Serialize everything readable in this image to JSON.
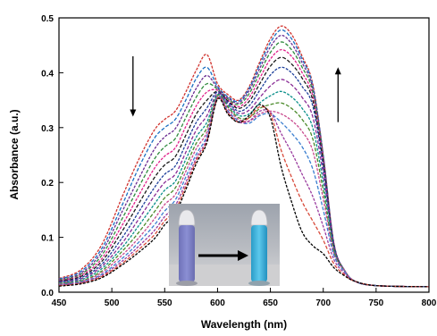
{
  "chart_data": {
    "type": "line",
    "xlabel": "Wavelength (nm)",
    "ylabel": "Absorbance (a.u.)",
    "xlim": [
      450,
      800
    ],
    "ylim": [
      0.0,
      0.5
    ],
    "xticks": [
      "450",
      "500",
      "550",
      "600",
      "650",
      "700",
      "750",
      "800"
    ],
    "yticks": [
      "0.0",
      "0.1",
      "0.2",
      "0.3",
      "0.4",
      "0.5"
    ],
    "grid": false,
    "legend": "none",
    "annotations": [
      {
        "kind": "arrow",
        "direction": "down",
        "near_x": 520,
        "from_y": 0.43,
        "to_y": 0.32
      },
      {
        "kind": "arrow",
        "direction": "up",
        "near_x": 714,
        "from_y": 0.31,
        "to_y": 0.41
      }
    ],
    "inset": {
      "kind": "photo",
      "content": "two vials, violet solution turning blue, black arrow between"
    },
    "series": [
      {
        "color": "#d0322d",
        "x": [
          450,
          470,
          490,
          510,
          525,
          540,
          550,
          560,
          570,
          580,
          590,
          600,
          610,
          620,
          630,
          640,
          650,
          660,
          670,
          680,
          690,
          700,
          710,
          720,
          730,
          750,
          800
        ],
        "y": [
          0.025,
          0.04,
          0.085,
          0.175,
          0.24,
          0.295,
          0.315,
          0.33,
          0.365,
          0.405,
          0.433,
          0.38,
          0.36,
          0.35,
          0.375,
          0.42,
          0.462,
          0.485,
          0.47,
          0.43,
          0.38,
          0.25,
          0.09,
          0.04,
          0.02,
          0.012,
          0.01
        ]
      },
      {
        "color": "#1b6fc2",
        "x": [
          450,
          470,
          490,
          510,
          525,
          540,
          550,
          560,
          570,
          580,
          590,
          600,
          610,
          620,
          630,
          640,
          650,
          660,
          670,
          680,
          690,
          700,
          710,
          720,
          730,
          750,
          800
        ],
        "y": [
          0.024,
          0.037,
          0.078,
          0.16,
          0.225,
          0.28,
          0.3,
          0.315,
          0.35,
          0.39,
          0.41,
          0.375,
          0.356,
          0.348,
          0.372,
          0.415,
          0.455,
          0.478,
          0.462,
          0.425,
          0.377,
          0.25,
          0.09,
          0.04,
          0.02,
          0.012,
          0.01
        ]
      },
      {
        "color": "#6a2c91",
        "x": [
          450,
          470,
          490,
          510,
          525,
          540,
          550,
          560,
          570,
          580,
          590,
          600,
          610,
          620,
          630,
          640,
          650,
          660,
          670,
          680,
          690,
          700,
          710,
          720,
          730,
          750,
          800
        ],
        "y": [
          0.023,
          0.034,
          0.072,
          0.148,
          0.205,
          0.26,
          0.283,
          0.298,
          0.334,
          0.372,
          0.395,
          0.372,
          0.354,
          0.345,
          0.368,
          0.408,
          0.447,
          0.468,
          0.453,
          0.418,
          0.372,
          0.248,
          0.089,
          0.04,
          0.02,
          0.012,
          0.01
        ]
      },
      {
        "color": "#2e8b3d",
        "x": [
          450,
          470,
          490,
          510,
          525,
          540,
          550,
          560,
          570,
          580,
          590,
          600,
          610,
          620,
          630,
          640,
          650,
          660,
          670,
          680,
          690,
          700,
          710,
          720,
          730,
          750,
          800
        ],
        "y": [
          0.022,
          0.032,
          0.066,
          0.135,
          0.19,
          0.242,
          0.265,
          0.28,
          0.318,
          0.356,
          0.38,
          0.37,
          0.352,
          0.342,
          0.362,
          0.4,
          0.437,
          0.456,
          0.442,
          0.41,
          0.366,
          0.245,
          0.088,
          0.04,
          0.02,
          0.012,
          0.01
        ]
      },
      {
        "color": "#e0218a",
        "x": [
          450,
          470,
          490,
          510,
          525,
          540,
          550,
          560,
          570,
          580,
          590,
          600,
          610,
          620,
          630,
          640,
          650,
          660,
          670,
          680,
          690,
          700,
          710,
          720,
          730,
          750,
          800
        ],
        "y": [
          0.021,
          0.03,
          0.06,
          0.123,
          0.175,
          0.225,
          0.248,
          0.263,
          0.302,
          0.34,
          0.365,
          0.368,
          0.35,
          0.338,
          0.355,
          0.39,
          0.425,
          0.442,
          0.43,
          0.4,
          0.358,
          0.24,
          0.087,
          0.04,
          0.02,
          0.012,
          0.01
        ]
      },
      {
        "color": "#1a1a1a",
        "x": [
          450,
          470,
          490,
          510,
          525,
          540,
          550,
          560,
          570,
          580,
          590,
          600,
          610,
          620,
          630,
          640,
          650,
          660,
          670,
          680,
          690,
          700,
          710,
          720,
          730,
          750,
          800
        ],
        "y": [
          0.02,
          0.028,
          0.055,
          0.112,
          0.16,
          0.208,
          0.232,
          0.247,
          0.286,
          0.325,
          0.35,
          0.366,
          0.348,
          0.335,
          0.348,
          0.38,
          0.412,
          0.428,
          0.416,
          0.39,
          0.35,
          0.235,
          0.086,
          0.04,
          0.02,
          0.012,
          0.01
        ]
      },
      {
        "color": "#1d3f9b",
        "x": [
          450,
          470,
          490,
          510,
          525,
          540,
          550,
          560,
          570,
          580,
          590,
          600,
          610,
          620,
          630,
          640,
          650,
          660,
          670,
          680,
          690,
          700,
          710,
          720,
          730,
          750,
          800
        ],
        "y": [
          0.019,
          0.026,
          0.05,
          0.1,
          0.145,
          0.19,
          0.215,
          0.23,
          0.27,
          0.31,
          0.336,
          0.365,
          0.346,
          0.33,
          0.34,
          0.368,
          0.396,
          0.41,
          0.4,
          0.375,
          0.34,
          0.228,
          0.085,
          0.04,
          0.02,
          0.012,
          0.01
        ]
      },
      {
        "color": "#8a2d96",
        "x": [
          450,
          470,
          490,
          510,
          525,
          540,
          550,
          560,
          570,
          580,
          590,
          600,
          610,
          620,
          630,
          640,
          650,
          660,
          670,
          680,
          690,
          700,
          710,
          720,
          730,
          750,
          800
        ],
        "y": [
          0.018,
          0.024,
          0.046,
          0.09,
          0.132,
          0.175,
          0.2,
          0.215,
          0.255,
          0.296,
          0.322,
          0.362,
          0.343,
          0.326,
          0.332,
          0.355,
          0.376,
          0.388,
          0.378,
          0.355,
          0.32,
          0.215,
          0.082,
          0.04,
          0.02,
          0.012,
          0.01
        ]
      },
      {
        "color": "#0a8f8a",
        "x": [
          450,
          470,
          490,
          510,
          525,
          540,
          550,
          560,
          570,
          580,
          590,
          600,
          610,
          620,
          630,
          640,
          650,
          660,
          670,
          680,
          690,
          700,
          710,
          720,
          730,
          750,
          800
        ],
        "y": [
          0.017,
          0.022,
          0.042,
          0.082,
          0.12,
          0.16,
          0.186,
          0.202,
          0.242,
          0.283,
          0.31,
          0.36,
          0.34,
          0.322,
          0.325,
          0.345,
          0.358,
          0.366,
          0.356,
          0.335,
          0.3,
          0.2,
          0.079,
          0.04,
          0.02,
          0.012,
          0.01
        ]
      },
      {
        "color": "#4a8a2a",
        "x": [
          450,
          470,
          490,
          510,
          525,
          540,
          550,
          560,
          570,
          580,
          590,
          600,
          610,
          620,
          630,
          640,
          650,
          660,
          670,
          680,
          690,
          700,
          710,
          720,
          730,
          750,
          800
        ],
        "y": [
          0.016,
          0.02,
          0.038,
          0.075,
          0.108,
          0.146,
          0.172,
          0.19,
          0.23,
          0.272,
          0.3,
          0.358,
          0.337,
          0.318,
          0.318,
          0.335,
          0.342,
          0.345,
          0.335,
          0.315,
          0.28,
          0.185,
          0.076,
          0.04,
          0.02,
          0.012,
          0.01
        ]
      },
      {
        "color": "#c94a8e",
        "x": [
          450,
          470,
          490,
          510,
          525,
          540,
          550,
          560,
          570,
          580,
          590,
          600,
          610,
          620,
          630,
          640,
          650,
          660,
          670,
          680,
          690,
          700,
          710,
          720,
          730,
          750,
          800
        ],
        "y": [
          0.015,
          0.019,
          0.035,
          0.068,
          0.098,
          0.133,
          0.16,
          0.178,
          0.22,
          0.262,
          0.292,
          0.356,
          0.334,
          0.315,
          0.312,
          0.325,
          0.33,
          0.325,
          0.313,
          0.293,
          0.258,
          0.17,
          0.072,
          0.04,
          0.02,
          0.012,
          0.01
        ]
      },
      {
        "color": "#3b7fd0",
        "x": [
          450,
          470,
          490,
          510,
          525,
          540,
          550,
          560,
          570,
          580,
          590,
          600,
          610,
          620,
          630,
          640,
          650,
          660,
          670,
          680,
          690,
          700,
          710,
          720,
          730,
          750,
          800
        ],
        "y": [
          0.014,
          0.018,
          0.032,
          0.062,
          0.09,
          0.122,
          0.148,
          0.168,
          0.21,
          0.252,
          0.285,
          0.355,
          0.33,
          0.312,
          0.308,
          0.322,
          0.325,
          0.31,
          0.29,
          0.265,
          0.225,
          0.15,
          0.068,
          0.038,
          0.02,
          0.012,
          0.01
        ]
      },
      {
        "color": "#9a3b9e",
        "x": [
          450,
          470,
          490,
          510,
          525,
          540,
          550,
          560,
          570,
          580,
          590,
          600,
          610,
          620,
          630,
          640,
          650,
          660,
          670,
          680,
          690,
          700,
          710,
          720,
          730,
          750,
          800
        ],
        "y": [
          0.013,
          0.017,
          0.03,
          0.057,
          0.083,
          0.112,
          0.138,
          0.158,
          0.2,
          0.245,
          0.28,
          0.354,
          0.328,
          0.31,
          0.312,
          0.33,
          0.328,
          0.29,
          0.255,
          0.215,
          0.175,
          0.12,
          0.06,
          0.035,
          0.02,
          0.012,
          0.01
        ]
      },
      {
        "color": "#d84a3a",
        "x": [
          450,
          470,
          490,
          510,
          525,
          540,
          550,
          560,
          570,
          580,
          590,
          600,
          610,
          620,
          630,
          640,
          650,
          660,
          670,
          680,
          690,
          700,
          710,
          720,
          730,
          750,
          800
        ],
        "y": [
          0.012,
          0.016,
          0.028,
          0.053,
          0.077,
          0.104,
          0.13,
          0.15,
          0.193,
          0.24,
          0.276,
          0.353,
          0.326,
          0.31,
          0.318,
          0.338,
          0.325,
          0.26,
          0.21,
          0.165,
          0.13,
          0.095,
          0.052,
          0.032,
          0.02,
          0.012,
          0.01
        ]
      },
      {
        "color": "#000000",
        "x": [
          450,
          470,
          490,
          510,
          525,
          540,
          550,
          560,
          570,
          580,
          590,
          600,
          610,
          620,
          630,
          640,
          650,
          660,
          670,
          680,
          690,
          700,
          710,
          720,
          730,
          750,
          800
        ],
        "y": [
          0.011,
          0.015,
          0.026,
          0.05,
          0.072,
          0.097,
          0.123,
          0.143,
          0.187,
          0.235,
          0.273,
          0.352,
          0.324,
          0.31,
          0.322,
          0.342,
          0.318,
          0.23,
          0.165,
          0.11,
          0.085,
          0.07,
          0.045,
          0.03,
          0.02,
          0.012,
          0.01
        ]
      }
    ]
  }
}
